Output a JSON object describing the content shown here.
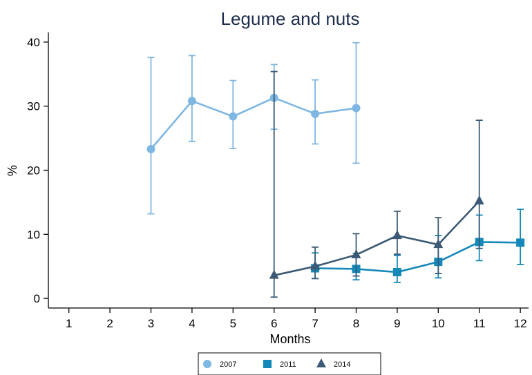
{
  "chart_data": {
    "type": "line",
    "title": "Legume and nuts",
    "xlabel": "Months",
    "ylabel": "%",
    "xlim": [
      0.5,
      12.2
    ],
    "ylim": [
      -1.5,
      41.5
    ],
    "x_ticks": [
      1,
      2,
      3,
      4,
      5,
      6,
      7,
      8,
      9,
      10,
      11,
      12
    ],
    "y_ticks": [
      0,
      10,
      20,
      30,
      40
    ],
    "grid": false,
    "legend_position": "bottom",
    "error_bars": true,
    "series": [
      {
        "name": "2007",
        "marker": "circle",
        "color": "#7fb7e3",
        "x": [
          3,
          4,
          5,
          6,
          7,
          8
        ],
        "y": [
          23.3,
          30.8,
          28.4,
          31.3,
          28.8,
          29.7
        ],
        "lower": [
          13.2,
          24.5,
          23.4,
          26.4,
          24.1,
          21.1
        ],
        "upper": [
          37.6,
          37.9,
          34.0,
          36.5,
          34.1,
          39.9
        ]
      },
      {
        "name": "2011",
        "marker": "square",
        "color": "#1488b8",
        "x": [
          7,
          8,
          9,
          10,
          11,
          12
        ],
        "y": [
          4.7,
          4.6,
          4.1,
          5.7,
          8.8,
          8.7
        ],
        "lower": [
          3.1,
          2.9,
          2.5,
          3.2,
          5.9,
          5.3
        ],
        "upper": [
          7.1,
          7.0,
          6.7,
          9.8,
          13.0,
          13.9
        ]
      },
      {
        "name": "2014",
        "marker": "triangle",
        "color": "#3c5a75",
        "x": [
          6,
          7,
          8,
          9,
          10,
          11
        ],
        "y": [
          3.6,
          5.0,
          6.8,
          9.8,
          8.4,
          15.2
        ],
        "lower": [
          0.2,
          3.1,
          3.5,
          6.9,
          3.9,
          7.8
        ],
        "upper": [
          35.4,
          8.0,
          10.1,
          13.6,
          12.6,
          27.8
        ]
      }
    ]
  }
}
